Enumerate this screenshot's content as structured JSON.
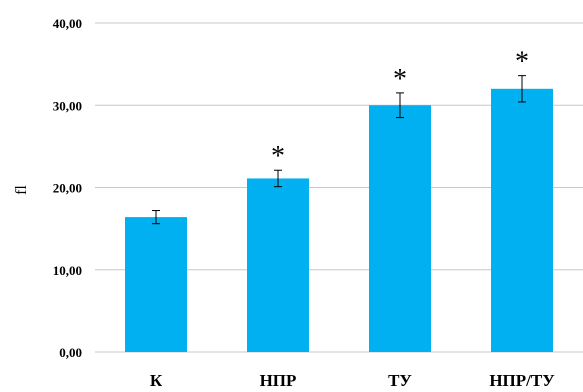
{
  "chart_data": {
    "type": "bar",
    "title": "",
    "xlabel": "",
    "ylabel": "fl",
    "categories": [
      "К",
      "НПР",
      "ТУ",
      "НПР/ТУ"
    ],
    "values": [
      16.4,
      21.1,
      30.0,
      32.0
    ],
    "error": [
      0.8,
      1.0,
      1.5,
      1.6
    ],
    "significance": [
      "",
      "*",
      "*",
      "*"
    ],
    "ylim": [
      0,
      40
    ],
    "yticks": [
      0,
      10,
      20,
      30,
      40
    ],
    "ytick_labels": [
      "0,00",
      "10,00",
      "20,00",
      "30,00",
      "40,00"
    ],
    "grid": true,
    "legend": "none",
    "bar_color": "#00b0f0",
    "grid_color": "#c8c8c8"
  }
}
